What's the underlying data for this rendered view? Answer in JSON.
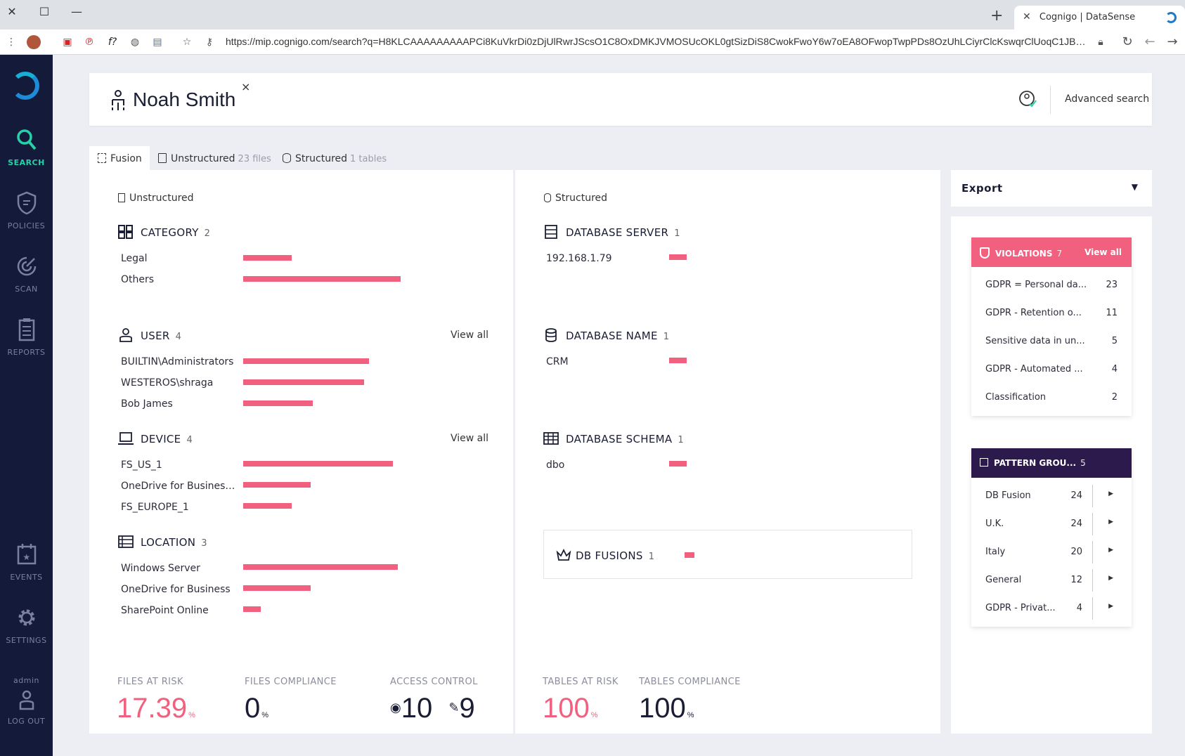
{
  "browser": {
    "tab_title": "Cognigo | DataSense",
    "url": "https://mip.cognigo.com/search?q=H8KLCAAAAAAAAAPCi8KuVkrDi0zDjUlRwrJScsO1C8OxDMKJVMOSUcOKL0gtSizDiS8CwokFwoY6w7oEA8OFwopTwpPDs8OzUhLCiyrClcKswqrClUoqC1JBdCZIwpvC..."
  },
  "sidebar": {
    "items": [
      {
        "label": "SEARCH",
        "icon": "search-icon",
        "active": true
      },
      {
        "label": "POLICIES",
        "icon": "shield-icon"
      },
      {
        "label": "SCAN",
        "icon": "radar-icon"
      },
      {
        "label": "REPORTS",
        "icon": "clipboard-icon"
      },
      {
        "label": "EVENTS",
        "icon": "calendar-star-icon"
      },
      {
        "label": "SETTINGS",
        "icon": "gear-icon"
      }
    ],
    "user": "admin",
    "logout": "LOG OUT"
  },
  "header": {
    "person_name": "Noah Smith",
    "close": "×",
    "advanced_search": "Advanced search"
  },
  "tabs": [
    {
      "label": "Fusion",
      "count": ""
    },
    {
      "label": "Unstructured",
      "count": "23 files"
    },
    {
      "label": "Structured",
      "count": "1 tables"
    }
  ],
  "unstructured": {
    "title": "Unstructured",
    "view_all": "View all",
    "groups": {
      "category": {
        "label": "CATEGORY",
        "count": "2",
        "rows": [
          {
            "label": "Legal",
            "value": 0.31
          },
          {
            "label": "Others",
            "value": 1.0
          }
        ]
      },
      "user": {
        "label": "USER",
        "count": "4",
        "rows": [
          {
            "label": "BUILTIN\\Administrators",
            "value": 0.8
          },
          {
            "label": "WESTEROS\\shraga",
            "value": 0.77
          },
          {
            "label": "Bob James",
            "value": 0.44
          }
        ]
      },
      "device": {
        "label": "DEVICE",
        "count": "4",
        "rows": [
          {
            "label": "FS_US_1",
            "value": 0.95
          },
          {
            "label": "OneDrive for Business -...",
            "value": 0.43
          },
          {
            "label": "FS_EUROPE_1",
            "value": 0.31
          }
        ]
      },
      "location": {
        "label": "LOCATION",
        "count": "3",
        "rows": [
          {
            "label": "Windows Server",
            "value": 0.98
          },
          {
            "label": "OneDrive for Business",
            "value": 0.43
          },
          {
            "label": "SharePoint Online",
            "value": 0.11
          }
        ]
      }
    },
    "stats": {
      "files_at_risk": {
        "label": "FILES AT RISK",
        "value": "17.39",
        "unit": "%"
      },
      "files_compliance": {
        "label": "FILES COMPLIANCE",
        "value": "0",
        "unit": "%"
      },
      "access_control": {
        "label": "ACCESS CONTROL",
        "value_a": "10",
        "value_b": "9"
      }
    }
  },
  "structured": {
    "title": "Structured",
    "groups": {
      "db_server": {
        "label": "DATABASE SERVER",
        "count": "1",
        "rows": [
          {
            "label": "192.168.1.79",
            "value": 1.0
          }
        ]
      },
      "db_name": {
        "label": "DATABASE NAME",
        "count": "1",
        "rows": [
          {
            "label": "CRM",
            "value": 1.0
          }
        ]
      },
      "db_schema": {
        "label": "DATABASE SCHEMA",
        "count": "1",
        "rows": [
          {
            "label": "dbo",
            "value": 1.0
          }
        ]
      },
      "db_fusions": {
        "label": "DB FUSIONS",
        "count": "1",
        "value": 1.0
      }
    },
    "stats": {
      "tables_at_risk": {
        "label": "TABLES AT RISK",
        "value": "100",
        "unit": "%"
      },
      "tables_compliance": {
        "label": "TABLES COMPLIANCE",
        "value": "100",
        "unit": "%"
      }
    }
  },
  "export": {
    "label": "Export",
    "caret": "▼"
  },
  "violations": {
    "label": "VIOLATIONS",
    "count": "7",
    "view_all": "View all",
    "color": "#f2607f",
    "rows": [
      {
        "label": "GDPR = Personal da...",
        "count": "23"
      },
      {
        "label": "GDPR - Retention o...",
        "count": "11"
      },
      {
        "label": "Sensitive data in un...",
        "count": "5"
      },
      {
        "label": "GDPR - Automated ...",
        "count": "4"
      },
      {
        "label": "Classification",
        "count": "2"
      }
    ]
  },
  "pattern_groups": {
    "label": "PATTERN GROU...",
    "count": "5",
    "color": "#2c1a4d",
    "rows": [
      {
        "label": "DB Fusion",
        "count": "24"
      },
      {
        "label": "U.K.",
        "count": "24"
      },
      {
        "label": "Italy",
        "count": "20"
      },
      {
        "label": "General",
        "count": "12"
      },
      {
        "label": "GDPR - Privat...",
        "count": "4"
      }
    ]
  }
}
